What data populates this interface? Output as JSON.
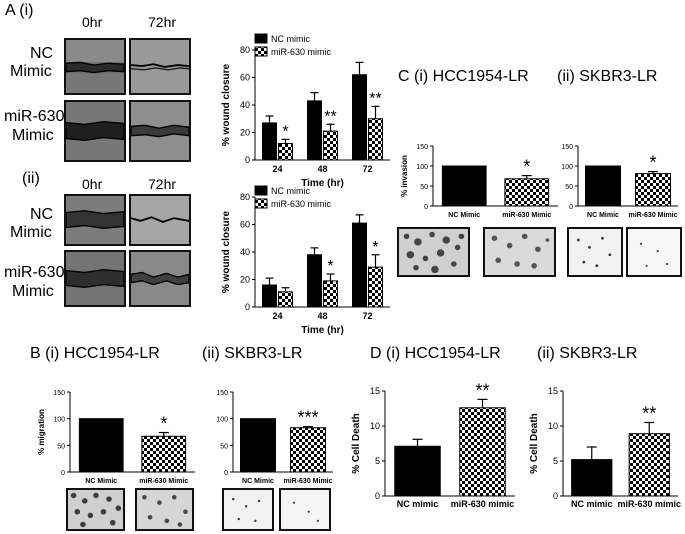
{
  "patterns": {
    "bar_fill": "#000000",
    "check_fill": "checker",
    "photo_dark": "#3a3a3a",
    "photo_light": "#d8d8d8"
  },
  "panels": {
    "a_title": "A (i)",
    "a_ii": "(ii)",
    "time_0": "0hr",
    "time_72": "72hr",
    "nc_l1": "NC",
    "nc_l2": "Mimic",
    "mir_l1": "miR-630",
    "mir_l2": "Mimic",
    "c_title_i": "C (i) HCC1954-LR",
    "c_title_ii": "(ii)  SKBR3-LR",
    "b_title_i": "B (i)  HCC1954-LR",
    "b_title_ii": "(ii)  SKBR3-LR",
    "d_title_i": "D (i)  HCC1954-LR",
    "d_title_ii": "(ii) SKBR3-LR"
  },
  "chart_data": [
    {
      "id": "A_i",
      "type": "bar",
      "categories": [
        "24",
        "48",
        "72"
      ],
      "series": [
        {
          "name": "NC mimic",
          "values": [
            27,
            43,
            62
          ],
          "errors": [
            5,
            6,
            9
          ]
        },
        {
          "name": "miR-630 mimic",
          "values": [
            12,
            21,
            30
          ],
          "errors": [
            3,
            5,
            9
          ]
        }
      ],
      "annotations": [
        "*",
        "**",
        "**"
      ],
      "xlabel": "Time (hr)",
      "ylabel": "% wound closure",
      "yticks": [
        "0",
        "20",
        "40",
        "60",
        "80"
      ],
      "ylim": [
        0,
        80
      ],
      "legend": "top-left"
    },
    {
      "id": "A_ii",
      "type": "bar",
      "categories": [
        "24",
        "48",
        "72"
      ],
      "series": [
        {
          "name": "NC mimic",
          "values": [
            16,
            38,
            61
          ],
          "errors": [
            5,
            5,
            6
          ]
        },
        {
          "name": "miR-630 mimic",
          "values": [
            11,
            19,
            29
          ],
          "errors": [
            3,
            5,
            9
          ]
        }
      ],
      "annotations": [
        "",
        "*",
        "*"
      ],
      "xlabel": "Time (hr)",
      "ylabel": "% wound closure",
      "yticks": [
        "0",
        "20",
        "40",
        "60",
        "80"
      ],
      "ylim": [
        0,
        80
      ],
      "legend": "top-left"
    },
    {
      "id": "C_i",
      "type": "bar",
      "categories": [
        "NC Mimic",
        "miR-630 Mimic"
      ],
      "values": [
        100,
        68
      ],
      "errors": [
        0,
        8
      ],
      "annotations": [
        "",
        "*"
      ],
      "ylabel": "% invasion",
      "yticks": [
        "0",
        "50",
        "100",
        "150"
      ],
      "ylim": [
        0,
        150
      ]
    },
    {
      "id": "C_ii",
      "type": "bar",
      "categories": [
        "NC Mimic",
        "miR-630 Mimic"
      ],
      "values": [
        100,
        81
      ],
      "errors": [
        0,
        5
      ],
      "annotations": [
        "",
        "*"
      ],
      "ylabel": "",
      "yticks": [
        "0",
        "50",
        "100",
        "150"
      ],
      "ylim": [
        0,
        150
      ]
    },
    {
      "id": "B_i",
      "type": "bar",
      "categories": [
        "NC Mimic",
        "miR-630 Mimic"
      ],
      "values": [
        100,
        67
      ],
      "errors": [
        0,
        7
      ],
      "annotations": [
        "",
        "*"
      ],
      "ylabel": "% migration",
      "yticks": [
        "0",
        "50",
        "100",
        "150"
      ],
      "ylim": [
        0,
        150
      ]
    },
    {
      "id": "B_ii",
      "type": "bar",
      "categories": [
        "NC Mimic",
        "miR-630 Mimic"
      ],
      "values": [
        100,
        83
      ],
      "errors": [
        0,
        2
      ],
      "annotations": [
        "",
        "***"
      ],
      "ylabel": "",
      "yticks": [
        "0",
        "50",
        "100",
        "150"
      ],
      "ylim": [
        0,
        150
      ]
    },
    {
      "id": "D_i",
      "type": "bar",
      "categories": [
        "NC mimic",
        "miR-630 mimic"
      ],
      "values": [
        7.1,
        12.6
      ],
      "errors": [
        1.0,
        1.2
      ],
      "annotations": [
        "",
        "**"
      ],
      "ylabel": "% Cell Death",
      "yticks": [
        "0",
        "5",
        "10",
        "15"
      ],
      "ylim": [
        0,
        15
      ]
    },
    {
      "id": "D_ii",
      "type": "bar",
      "categories": [
        "NC mimic",
        "miR-630 mimic"
      ],
      "values": [
        5.2,
        8.9
      ],
      "errors": [
        1.8,
        1.6
      ],
      "annotations": [
        "",
        "**"
      ],
      "ylabel": "% Cell Death",
      "yticks": [
        "0",
        "5",
        "10",
        "15"
      ],
      "ylim": [
        0,
        15
      ]
    }
  ]
}
